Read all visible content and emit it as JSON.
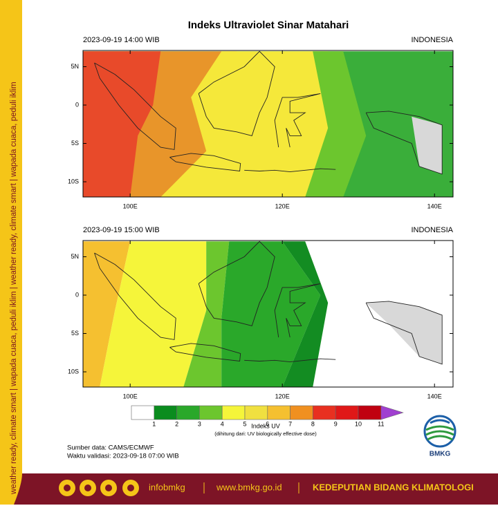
{
  "title": "Indeks Ultraviolet Sinar Matahari",
  "panels": [
    {
      "timestamp": "2023-09-19  14:00 WIB",
      "region": "INDONESIA",
      "y_axis_labels": [
        "5N",
        "0",
        "5S",
        "10S"
      ],
      "x_axis_labels": [
        "100E",
        "120E",
        "140E"
      ]
    },
    {
      "timestamp": "2023-09-19  15:00 WIB",
      "region": "INDONESIA",
      "y_axis_labels": [
        "5N",
        "0",
        "5S",
        "10S"
      ],
      "x_axis_labels": [
        "100E",
        "120E",
        "140E"
      ]
    }
  ],
  "colorbar": {
    "labels": [
      "1",
      "2",
      "3",
      "4",
      "5",
      "6",
      "7",
      "8",
      "9",
      "10",
      "11"
    ],
    "title": "Indeks UV",
    "note": "(dihitung dari: UV biologically effective dose)"
  },
  "source": "Sumber data: CAMS/ECMWF",
  "validity": "Waktu validasi: 2023-09-18 07:00 WIB",
  "logo": "BMKG",
  "side_banner": "weather ready, climate smart  |  wapada cuaca, peduli iklim  |  weather ready, climate smart  |  wapada cuaca, peduli iklim",
  "footer": {
    "handle": "infobmkg",
    "website": "www.bmkg.go.id",
    "department": "KEDEPUTIAN BIDANG KLIMATOLOGI"
  }
}
